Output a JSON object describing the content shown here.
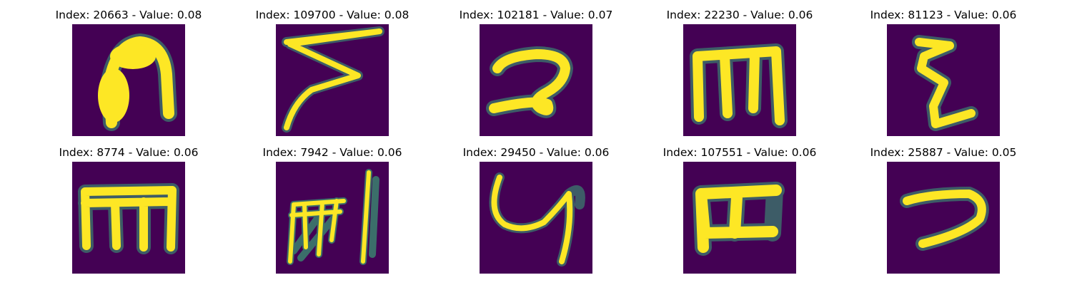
{
  "figure": {
    "panels": [
      {
        "title": "Index: 20663 - Value: 0.08",
        "glyph": "arch-n-glyph"
      },
      {
        "title": "Index: 109700 - Value: 0.08",
        "glyph": "zigzag-stroke-glyph"
      },
      {
        "title": "Index: 102181 - Value: 0.07",
        "glyph": "looped-2-glyph"
      },
      {
        "title": "Index: 22230 - Value: 0.06",
        "glyph": "m-shape-glyph"
      },
      {
        "title": "Index: 81123 - Value: 0.06",
        "glyph": "xi-shape-glyph"
      },
      {
        "title": "Index: 8774 - Value: 0.06",
        "glyph": "m-shape-glyph"
      },
      {
        "title": "Index: 7942 - Value: 0.06",
        "glyph": "scribbled-glyph"
      },
      {
        "title": "Index: 29450 - Value: 0.06",
        "glyph": "y-shape-glyph"
      },
      {
        "title": "Index: 107551 - Value: 0.06",
        "glyph": "m-shape-glyph"
      },
      {
        "title": "Index: 25887 - Value: 0.05",
        "glyph": "hook-7-glyph"
      }
    ],
    "colors": {
      "background": "#440154",
      "stroke": "#fde725",
      "edge": "#35b779"
    }
  }
}
